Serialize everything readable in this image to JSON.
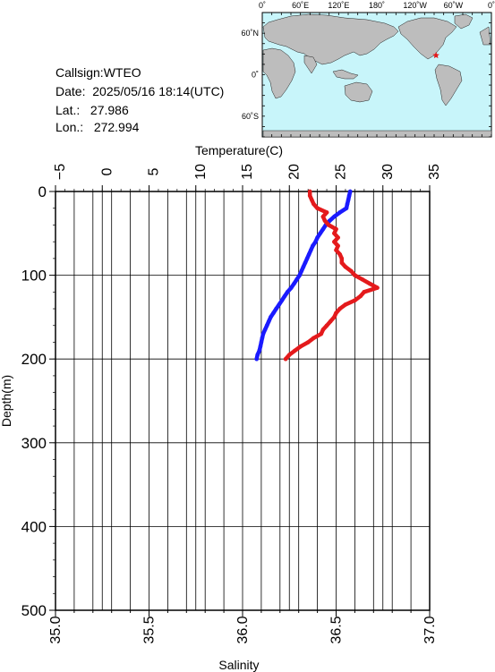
{
  "meta": {
    "callsign_label": "Callsign:",
    "callsign": "WTEO",
    "date_label": "Date:",
    "date": "2025/05/16 18:14(UTC)",
    "lat_label": "Lat.:",
    "lat": "27.986",
    "lon_label": "Lon.:",
    "lon": "272.994"
  },
  "map": {
    "lon_ticks": [
      "0˚",
      "60˚E",
      "120˚E",
      "180˚",
      "120˚W",
      "60˚W",
      "0˚"
    ],
    "lat_ticks": [
      "60˚N",
      "0˚",
      "60˚S"
    ],
    "station": {
      "lat": 27.986,
      "lon": 272.994
    },
    "colors": {
      "ocean": "#c8f5fa",
      "land": "#bdbdbd",
      "marker": "#e41a1c"
    }
  },
  "chart_data": {
    "type": "line",
    "xlabel_top": "Temperature(C)",
    "xlabel_bottom": "Salinity",
    "ylabel": "Depth(m)",
    "temperature_range": [
      -5,
      35
    ],
    "temperature_ticks": [
      "−5",
      "0",
      "5",
      "10",
      "15",
      "20",
      "25",
      "30",
      "35"
    ],
    "salinity_range": [
      35.0,
      37.0
    ],
    "salinity_ticks": [
      "35.0",
      "35.5",
      "36.0",
      "36.5",
      "37.0"
    ],
    "depth_range": [
      0,
      500
    ],
    "depth_ticks": [
      "0",
      "100",
      "200",
      "300",
      "400",
      "500"
    ],
    "grid": true,
    "series": [
      {
        "color": "#1a1aff",
        "axis": "temperature",
        "points": [
          [
            26.5,
            0
          ],
          [
            26.4,
            5
          ],
          [
            26.3,
            10
          ],
          [
            26.2,
            15
          ],
          [
            26.1,
            20
          ],
          [
            25.4,
            25
          ],
          [
            24.8,
            30
          ],
          [
            24.3,
            35
          ],
          [
            23.9,
            40
          ],
          [
            23.6,
            45
          ],
          [
            23.3,
            50
          ],
          [
            23.0,
            55
          ],
          [
            22.8,
            60
          ],
          [
            22.5,
            65
          ],
          [
            22.3,
            70
          ],
          [
            22.1,
            75
          ],
          [
            21.9,
            80
          ],
          [
            21.7,
            85
          ],
          [
            21.5,
            90
          ],
          [
            21.3,
            95
          ],
          [
            21.1,
            100
          ],
          [
            20.8,
            105
          ],
          [
            20.5,
            110
          ],
          [
            20.2,
            115
          ],
          [
            19.8,
            120
          ],
          [
            19.5,
            125
          ],
          [
            19.2,
            130
          ],
          [
            18.9,
            135
          ],
          [
            18.6,
            140
          ],
          [
            18.3,
            145
          ],
          [
            18.0,
            150
          ],
          [
            17.8,
            155
          ],
          [
            17.6,
            160
          ],
          [
            17.4,
            165
          ],
          [
            17.2,
            170
          ],
          [
            17.1,
            175
          ],
          [
            17.0,
            180
          ],
          [
            16.9,
            185
          ],
          [
            16.8,
            190
          ],
          [
            16.6,
            195
          ],
          [
            16.5,
            200
          ]
        ]
      },
      {
        "color": "#e41a1c",
        "axis": "salinity",
        "points": [
          [
            36.36,
            0
          ],
          [
            36.36,
            5
          ],
          [
            36.37,
            10
          ],
          [
            36.38,
            15
          ],
          [
            36.4,
            20
          ],
          [
            36.45,
            25
          ],
          [
            36.43,
            30
          ],
          [
            36.44,
            35
          ],
          [
            36.46,
            40
          ],
          [
            36.5,
            45
          ],
          [
            36.49,
            50
          ],
          [
            36.51,
            55
          ],
          [
            36.49,
            60
          ],
          [
            36.51,
            65
          ],
          [
            36.5,
            70
          ],
          [
            36.52,
            75
          ],
          [
            36.53,
            80
          ],
          [
            36.53,
            85
          ],
          [
            36.55,
            90
          ],
          [
            36.58,
            95
          ],
          [
            36.6,
            100
          ],
          [
            36.64,
            105
          ],
          [
            36.68,
            110
          ],
          [
            36.72,
            115
          ],
          [
            36.65,
            120
          ],
          [
            36.63,
            125
          ],
          [
            36.6,
            130
          ],
          [
            36.55,
            135
          ],
          [
            36.52,
            140
          ],
          [
            36.5,
            145
          ],
          [
            36.49,
            150
          ],
          [
            36.47,
            155
          ],
          [
            36.45,
            160
          ],
          [
            36.43,
            165
          ],
          [
            36.42,
            170
          ],
          [
            36.38,
            175
          ],
          [
            36.35,
            180
          ],
          [
            36.31,
            185
          ],
          [
            36.28,
            190
          ],
          [
            36.25,
            195
          ],
          [
            36.23,
            200
          ]
        ]
      }
    ]
  }
}
